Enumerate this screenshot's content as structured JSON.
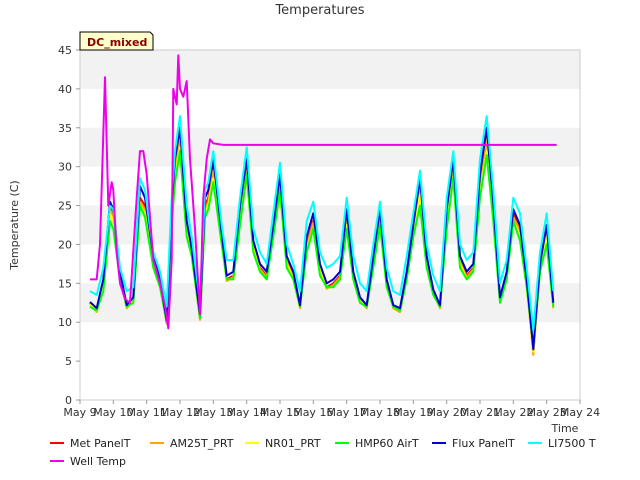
{
  "chart_data": {
    "type": "line",
    "title": "Temperatures",
    "xlabel": "Time",
    "ylabel": "Temperature (C)",
    "badge": "DC_mixed",
    "xlim": [
      9,
      24
    ],
    "ylim": [
      0,
      45
    ],
    "xticks": [
      9,
      10,
      11,
      12,
      13,
      14,
      15,
      16,
      17,
      18,
      19,
      20,
      21,
      22,
      23,
      24
    ],
    "xtick_labels": [
      "May 9",
      "May 10",
      "May 11",
      "May 12",
      "May 13",
      "May 14",
      "May 15",
      "May 16",
      "May 17",
      "May 18",
      "May 19",
      "May 20",
      "May 21",
      "May 22",
      "May 23",
      "May 24"
    ],
    "yticks": [
      0,
      5,
      10,
      15,
      20,
      25,
      30,
      35,
      40,
      45
    ],
    "ytick_labels": [
      "0",
      "5",
      "10",
      "15",
      "20",
      "25",
      "30",
      "35",
      "40",
      "45"
    ],
    "grid": "horizontal bands",
    "legend_position": "bottom",
    "series": [
      {
        "name": "Met PanelT",
        "color": "#ff0000",
        "x": [
          9.3,
          9.5,
          9.7,
          9.9,
          10.0,
          10.2,
          10.4,
          10.6,
          10.8,
          10.95,
          11.2,
          11.4,
          11.6,
          11.75,
          11.85,
          12.0,
          12.2,
          12.35,
          12.6,
          12.75,
          12.85,
          13.0,
          13.25,
          13.4,
          13.6,
          13.8,
          14.0,
          14.2,
          14.4,
          14.6,
          14.8,
          15.0,
          15.2,
          15.4,
          15.6,
          15.8,
          16.0,
          16.2,
          16.4,
          16.6,
          16.8,
          17.0,
          17.2,
          17.4,
          17.6,
          17.8,
          18.0,
          18.2,
          18.4,
          18.6,
          18.8,
          19.0,
          19.2,
          19.4,
          19.6,
          19.8,
          20.0,
          20.2,
          20.4,
          20.6,
          20.8,
          21.0,
          21.2,
          21.4,
          21.6,
          21.8,
          22.0,
          22.2,
          22.4,
          22.6,
          22.8,
          23.0,
          23.2
        ],
        "y": [
          12.5,
          11.5,
          15,
          25,
          24,
          16,
          12,
          13,
          26,
          25,
          18,
          15,
          10,
          24,
          30,
          34,
          22,
          19,
          10.5,
          25,
          26,
          30,
          21,
          15.5,
          16,
          24,
          30,
          20,
          17,
          16,
          22,
          28,
          18,
          16,
          12,
          20,
          23,
          17,
          14.5,
          15,
          16,
          24,
          16,
          13,
          12,
          18,
          24,
          15,
          12,
          11.5,
          16,
          22,
          28,
          18,
          14,
          12,
          24,
          30,
          18,
          16,
          17,
          28,
          34,
          25,
          13,
          16,
          24,
          22,
          15,
          6,
          17,
          22,
          12
        ]
      },
      {
        "name": "AM25T_PRT",
        "color": "#ffa500",
        "x": [
          9.3,
          9.5,
          9.7,
          9.9,
          10.0,
          10.2,
          10.4,
          10.6,
          10.8,
          10.95,
          11.2,
          11.4,
          11.6,
          11.75,
          11.85,
          12.0,
          12.2,
          12.35,
          12.6,
          12.75,
          12.85,
          13.0,
          13.25,
          13.4,
          13.6,
          13.8,
          14.0,
          14.2,
          14.4,
          14.6,
          14.8,
          15.0,
          15.2,
          15.4,
          15.6,
          15.8,
          16.0,
          16.2,
          16.4,
          16.6,
          16.8,
          17.0,
          17.2,
          17.4,
          17.6,
          17.8,
          18.0,
          18.2,
          18.4,
          18.6,
          18.8,
          19.0,
          19.2,
          19.4,
          19.6,
          19.8,
          20.0,
          20.2,
          20.4,
          20.6,
          20.8,
          21.0,
          21.2,
          21.4,
          21.6,
          21.8,
          22.0,
          22.2,
          22.4,
          22.6,
          22.8,
          23.0,
          23.2
        ],
        "y": [
          12.3,
          11.3,
          14.8,
          24.5,
          23.5,
          15.8,
          11.8,
          12.8,
          25.5,
          24.5,
          17.8,
          14.8,
          9.8,
          23.5,
          29.5,
          33.5,
          21.8,
          18.8,
          10.3,
          24.5,
          25.5,
          29.5,
          20.8,
          15.3,
          15.8,
          23.5,
          29.5,
          19.8,
          16.8,
          15.8,
          21.8,
          27.5,
          17.8,
          15.8,
          11.8,
          19.8,
          22.8,
          16.8,
          14.3,
          14.8,
          15.8,
          23.5,
          15.8,
          12.8,
          11.8,
          17.8,
          23.5,
          14.8,
          11.8,
          11.3,
          15.8,
          21.8,
          27.5,
          17.8,
          13.8,
          11.8,
          23.5,
          29.5,
          17.8,
          15.8,
          16.8,
          27.5,
          33.5,
          24.5,
          12.8,
          15.8,
          23.5,
          21.8,
          14.8,
          5.8,
          16.8,
          21.8,
          11.8
        ]
      },
      {
        "name": "NR01_PRT",
        "color": "#ffff00",
        "x": [
          9.3,
          9.5,
          9.7,
          9.9,
          10.0,
          10.2,
          10.4,
          10.6,
          10.8,
          10.95,
          11.2,
          11.4,
          11.6,
          11.75,
          11.85,
          12.0,
          12.2,
          12.35,
          12.6,
          12.75,
          12.85,
          13.0,
          13.25,
          13.4,
          13.6,
          13.8,
          14.0,
          14.2,
          14.4,
          14.6,
          14.8,
          15.0,
          15.2,
          15.4,
          15.6,
          15.8,
          16.0,
          16.2,
          16.4,
          16.6,
          16.8,
          17.0,
          17.2,
          17.4,
          17.6,
          17.8,
          18.0,
          18.2,
          18.4,
          18.6,
          18.8,
          19.0,
          19.2,
          19.4,
          19.6,
          19.8,
          20.0,
          20.2,
          20.4,
          20.6,
          20.8,
          21.0,
          21.2,
          21.4,
          21.6,
          21.8,
          22.0,
          22.2,
          22.4,
          22.6,
          22.8,
          23.0,
          23.2
        ],
        "y": [
          12.4,
          11.4,
          14.5,
          24,
          23,
          15.5,
          12,
          12.7,
          25,
          24,
          17.5,
          14.5,
          10,
          23,
          28.5,
          32.5,
          21.5,
          18.5,
          10.5,
          24,
          25,
          28.5,
          20.5,
          15.5,
          15.5,
          23,
          28.5,
          19.5,
          16.5,
          15.5,
          21.5,
          26.5,
          17.5,
          15.5,
          12,
          19.5,
          22,
          16.5,
          14.5,
          14.5,
          15.5,
          22.5,
          15.5,
          12.7,
          12,
          17.5,
          22.5,
          14.5,
          12,
          11.5,
          15.5,
          21,
          26.5,
          17.5,
          13.7,
          12,
          23,
          28.5,
          17.5,
          15.5,
          16.5,
          26.5,
          32,
          24,
          12.7,
          15.5,
          23,
          21,
          14.5,
          6.2,
          16.5,
          21,
          12
        ]
      },
      {
        "name": "HMP60 AirT",
        "color": "#00ff00",
        "x": [
          9.3,
          9.5,
          9.7,
          9.9,
          10.0,
          10.2,
          10.4,
          10.6,
          10.8,
          10.95,
          11.2,
          11.4,
          11.6,
          11.75,
          11.85,
          12.0,
          12.2,
          12.35,
          12.6,
          12.75,
          12.85,
          13.0,
          13.25,
          13.4,
          13.6,
          13.8,
          14.0,
          14.2,
          14.4,
          14.6,
          14.8,
          15.0,
          15.2,
          15.4,
          15.6,
          15.8,
          16.0,
          16.2,
          16.4,
          16.6,
          16.8,
          17.0,
          17.2,
          17.4,
          17.6,
          17.8,
          18.0,
          18.2,
          18.4,
          18.6,
          18.8,
          19.0,
          19.2,
          19.4,
          19.6,
          19.8,
          20.0,
          20.2,
          20.4,
          20.6,
          20.8,
          21.0,
          21.2,
          21.4,
          21.6,
          21.8,
          22.0,
          22.2,
          22.4,
          22.6,
          22.8,
          23.0,
          23.2
        ],
        "y": [
          12,
          11.5,
          14,
          23,
          22,
          15.5,
          12,
          12.5,
          25,
          23.5,
          17,
          14.5,
          10,
          22.5,
          28,
          32,
          21,
          18.5,
          10.5,
          23.5,
          24.5,
          28,
          20,
          15.5,
          15.5,
          22.5,
          29,
          19,
          16.5,
          15.5,
          21,
          27,
          17,
          15.5,
          12,
          19,
          22,
          16,
          14.5,
          14.5,
          15.5,
          22,
          15.5,
          12.5,
          12,
          17,
          22.5,
          14.5,
          12,
          11.5,
          15.5,
          21,
          25,
          17,
          13.5,
          12,
          22,
          28.5,
          17,
          15.5,
          16.5,
          26,
          31.5,
          23,
          12.5,
          15.5,
          23,
          20.5,
          14.5,
          7,
          16.5,
          20,
          12
        ]
      },
      {
        "name": "Flux PanelT",
        "color": "#0000cd",
        "x": [
          9.3,
          9.5,
          9.7,
          9.9,
          10.0,
          10.2,
          10.4,
          10.6,
          10.8,
          10.95,
          11.2,
          11.4,
          11.6,
          11.75,
          11.85,
          12.0,
          12.2,
          12.35,
          12.6,
          12.75,
          12.85,
          13.0,
          13.25,
          13.4,
          13.6,
          13.8,
          14.0,
          14.2,
          14.4,
          14.6,
          14.8,
          15.0,
          15.2,
          15.4,
          15.6,
          15.8,
          16.0,
          16.2,
          16.4,
          16.6,
          16.8,
          17.0,
          17.2,
          17.4,
          17.6,
          17.8,
          18.0,
          18.2,
          18.4,
          18.6,
          18.8,
          19.0,
          19.2,
          19.4,
          19.6,
          19.8,
          20.0,
          20.2,
          20.4,
          20.6,
          20.8,
          21.0,
          21.2,
          21.4,
          21.6,
          21.8,
          22.0,
          22.2,
          22.4,
          22.6,
          22.8,
          23.0,
          23.2
        ],
        "y": [
          12.6,
          11.8,
          15.5,
          25.5,
          24.5,
          16.5,
          12.2,
          13.2,
          27.5,
          26,
          18.5,
          15.5,
          10.2,
          25,
          31,
          35,
          23,
          19.5,
          11,
          26,
          27,
          31,
          21.5,
          16,
          16.5,
          25,
          31,
          20.5,
          17.5,
          16.5,
          22.5,
          29,
          18.5,
          16.5,
          12.2,
          21,
          24,
          17.5,
          15,
          15.5,
          16.5,
          24.5,
          16.5,
          13.2,
          12.2,
          18.5,
          24.5,
          15.5,
          12.2,
          11.8,
          16.5,
          22.5,
          28.5,
          18.5,
          14.2,
          12.2,
          24.5,
          31,
          18.5,
          16.5,
          17.5,
          29,
          35,
          25.5,
          13.2,
          16.5,
          24.5,
          22.5,
          15.5,
          6.5,
          17.5,
          22.5,
          12.5
        ]
      },
      {
        "name": "LI7500 T",
        "color": "#00ffff",
        "x": [
          9.3,
          9.5,
          9.7,
          9.9,
          10.0,
          10.2,
          10.4,
          10.6,
          10.8,
          10.95,
          11.2,
          11.4,
          11.6,
          11.75,
          11.85,
          12.0,
          12.2,
          12.35,
          12.6,
          12.75,
          12.85,
          13.0,
          13.25,
          13.4,
          13.6,
          13.8,
          14.0,
          14.2,
          14.4,
          14.6,
          14.8,
          15.0,
          15.2,
          15.4,
          15.6,
          15.8,
          16.0,
          16.2,
          16.4,
          16.6,
          16.8,
          17.0,
          17.2,
          17.4,
          17.6,
          17.8,
          18.0,
          18.2,
          18.4,
          18.6,
          18.8,
          19.0,
          19.2,
          19.4,
          19.6,
          19.8,
          20.0,
          20.2,
          20.4,
          20.6,
          20.8,
          21.0,
          21.2,
          21.4,
          21.6,
          21.8,
          22.0,
          22.2,
          22.4,
          22.6,
          22.8,
          23.0,
          23.2
        ],
        "y": [
          14,
          13.5,
          17,
          25,
          24.5,
          17,
          14,
          14.5,
          28.5,
          27,
          19,
          16.5,
          12,
          26,
          32,
          36.5,
          25,
          21,
          12.5,
          27,
          28,
          32,
          22.5,
          18,
          18,
          26,
          32.5,
          22,
          19,
          17.5,
          24,
          30.5,
          20,
          17.5,
          14,
          23,
          25.5,
          19,
          17,
          17.5,
          18.5,
          26,
          18.5,
          15,
          14,
          20,
          25.5,
          17,
          14,
          13.5,
          18.5,
          24,
          29.5,
          20,
          16,
          14,
          26,
          32,
          20,
          18,
          19,
          31,
          36.5,
          27,
          15,
          18,
          26,
          24,
          17,
          9,
          19,
          24,
          14
        ]
      },
      {
        "name": "Well Temp",
        "color": "#ee00ee",
        "x": [
          9.3,
          9.5,
          9.6,
          9.75,
          9.85,
          9.95,
          10.0,
          10.1,
          10.2,
          10.35,
          10.5,
          10.7,
          10.8,
          10.9,
          11.0,
          11.2,
          11.4,
          11.55,
          11.65,
          11.75,
          11.8,
          11.9,
          11.95,
          12.0,
          12.1,
          12.2,
          12.3,
          12.45,
          12.6,
          12.7,
          12.8,
          12.9,
          13.0,
          13.3,
          14.0,
          15.0,
          16.0,
          17.0,
          18.0,
          19.0,
          20.0,
          21.0,
          22.0,
          23.0,
          23.3
        ],
        "y": [
          15.5,
          15.5,
          20,
          41.5,
          25,
          28,
          27,
          19,
          15,
          13,
          12.5,
          26,
          32,
          32,
          29,
          18,
          15,
          12,
          9.2,
          18,
          40,
          38,
          44.3,
          40,
          39,
          41,
          31,
          22,
          11,
          26,
          31,
          33.5,
          33,
          32.8,
          32.8,
          32.8,
          32.8,
          32.8,
          32.8,
          32.8,
          32.8,
          32.8,
          32.8,
          32.8,
          32.8
        ]
      }
    ]
  }
}
